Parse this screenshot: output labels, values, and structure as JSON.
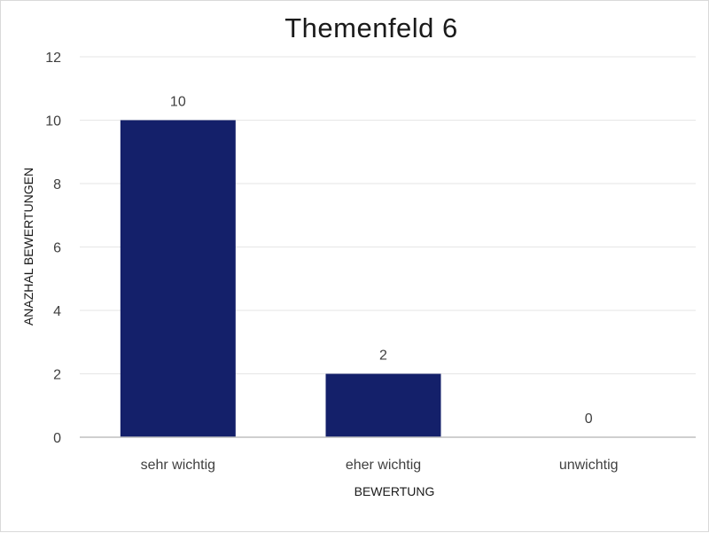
{
  "chart_data": {
    "type": "bar",
    "title": "Themenfeld 6",
    "xlabel": "BEWERTUNG",
    "ylabel": "ANAZHAL BEWERTUNGEN",
    "categories": [
      "sehr wichtig",
      "eher wichtig",
      "unwichtig"
    ],
    "values": [
      10,
      2,
      0
    ],
    "data_labels": [
      "10",
      "2",
      "0"
    ],
    "ylim": [
      0,
      12
    ],
    "yticks": [
      "0",
      "2",
      "4",
      "6",
      "8",
      "10",
      "12"
    ],
    "grid": true,
    "legend": "none",
    "colors": {
      "bar": "#14206a"
    }
  }
}
